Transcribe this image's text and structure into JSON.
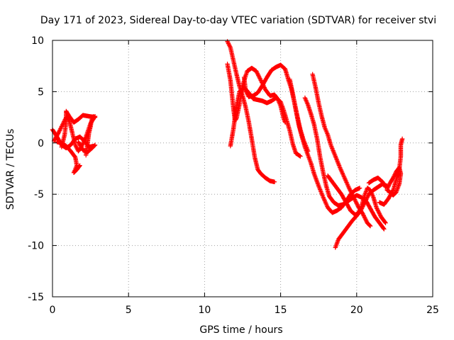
{
  "chart_data": {
    "type": "scatter",
    "title": "Day 171 of 2023, Sidereal Day-to-day VTEC variation (SDTVAR) for receiver stvi",
    "xlabel": "GPS time / hours",
    "ylabel": "SDTVAR / TECUs",
    "xlim": [
      0,
      25
    ],
    "ylim": [
      -15,
      10
    ],
    "xticks": [
      0,
      5,
      10,
      15,
      20,
      25
    ],
    "yticks": [
      -15,
      -10,
      -5,
      0,
      5,
      10
    ],
    "xtick_labels": [
      "0",
      "5",
      "10",
      "15",
      "20",
      "25"
    ],
    "ytick_labels": [
      "-15",
      "-10",
      "-5",
      "0",
      "5",
      "10"
    ],
    "grid": true,
    "marker": "plus",
    "series_color": "#ff0000",
    "tracks": [
      [
        [
          0.0,
          1.3
        ],
        [
          0.3,
          0.6
        ],
        [
          0.6,
          -0.2
        ],
        [
          0.9,
          -0.5
        ],
        [
          1.2,
          -0.2
        ],
        [
          1.5,
          0.4
        ],
        [
          1.8,
          0.6
        ],
        [
          2.1,
          0.2
        ],
        [
          2.4,
          -0.4
        ],
        [
          2.7,
          -0.3
        ]
      ],
      [
        [
          0.1,
          0.2
        ],
        [
          0.4,
          1.0
        ],
        [
          0.7,
          1.9
        ],
        [
          0.9,
          2.5
        ],
        [
          1.1,
          2.2
        ],
        [
          1.3,
          1.0
        ],
        [
          1.5,
          -0.2
        ],
        [
          1.7,
          -0.8
        ],
        [
          1.9,
          -0.4
        ],
        [
          2.2,
          0.6
        ],
        [
          2.5,
          1.9
        ],
        [
          2.8,
          2.6
        ]
      ],
      [
        [
          0.6,
          -0.4
        ],
        [
          0.8,
          0.8
        ],
        [
          0.9,
          2.1
        ],
        [
          0.9,
          3.1
        ],
        [
          1.1,
          2.6
        ],
        [
          1.4,
          2.0
        ],
        [
          1.7,
          2.3
        ],
        [
          2.0,
          2.7
        ],
        [
          2.4,
          2.6
        ],
        [
          2.8,
          2.5
        ]
      ],
      [
        [
          0.3,
          0.1
        ],
        [
          0.6,
          0.0
        ],
        [
          0.9,
          -0.3
        ],
        [
          1.2,
          -0.8
        ],
        [
          1.5,
          -1.4
        ],
        [
          1.6,
          -2.2
        ],
        [
          1.4,
          -2.9
        ],
        [
          1.6,
          -2.6
        ],
        [
          1.8,
          -2.2
        ]
      ],
      [
        [
          1.7,
          0.1
        ],
        [
          2.0,
          -0.7
        ],
        [
          2.3,
          -0.9
        ],
        [
          2.6,
          -0.5
        ],
        [
          2.8,
          -0.2
        ]
      ],
      [
        [
          2.2,
          -1.2
        ],
        [
          2.3,
          -0.1
        ],
        [
          2.4,
          1.0
        ],
        [
          2.5,
          1.6
        ],
        [
          2.6,
          2.4
        ],
        [
          2.7,
          2.6
        ]
      ],
      [
        [
          11.5,
          9.9
        ],
        [
          11.7,
          9.3
        ],
        [
          11.9,
          8.0
        ],
        [
          12.1,
          6.7
        ],
        [
          12.3,
          5.5
        ],
        [
          12.5,
          4.6
        ],
        [
          12.7,
          3.5
        ],
        [
          12.9,
          2.1
        ],
        [
          13.1,
          0.4
        ],
        [
          13.3,
          -1.4
        ],
        [
          13.5,
          -2.6
        ],
        [
          13.7,
          -3.0
        ],
        [
          14.0,
          -3.4
        ],
        [
          14.3,
          -3.7
        ],
        [
          14.6,
          -3.8
        ]
      ],
      [
        [
          11.5,
          7.7
        ],
        [
          11.7,
          6.1
        ],
        [
          11.8,
          4.7
        ],
        [
          11.9,
          3.3
        ],
        [
          12.0,
          2.2
        ],
        [
          12.1,
          2.4
        ],
        [
          12.3,
          3.8
        ],
        [
          12.5,
          5.6
        ],
        [
          12.8,
          7.0
        ],
        [
          13.1,
          7.3
        ],
        [
          13.4,
          7.0
        ],
        [
          13.7,
          6.1
        ],
        [
          14.0,
          5.2
        ],
        [
          14.3,
          4.6
        ],
        [
          14.6,
          4.7
        ],
        [
          14.8,
          4.3
        ],
        [
          15.0,
          3.6
        ],
        [
          15.2,
          2.4
        ],
        [
          15.3,
          2.0
        ]
      ],
      [
        [
          12.6,
          6.4
        ],
        [
          12.7,
          5.1
        ],
        [
          12.9,
          4.5
        ],
        [
          13.2,
          4.6
        ],
        [
          13.5,
          4.9
        ],
        [
          13.8,
          5.6
        ],
        [
          14.1,
          6.4
        ],
        [
          14.4,
          7.1
        ],
        [
          14.7,
          7.4
        ],
        [
          15.0,
          7.6
        ],
        [
          15.3,
          7.2
        ],
        [
          15.5,
          6.2
        ],
        [
          15.7,
          5.3
        ],
        [
          15.9,
          4.0
        ],
        [
          16.1,
          2.6
        ],
        [
          16.3,
          1.3
        ],
        [
          16.5,
          0.3
        ],
        [
          16.8,
          -0.8
        ]
      ],
      [
        [
          11.7,
          -0.3
        ],
        [
          11.9,
          1.4
        ],
        [
          12.1,
          3.6
        ],
        [
          12.3,
          5.0
        ],
        [
          12.6,
          5.4
        ],
        [
          12.9,
          4.9
        ],
        [
          13.2,
          4.3
        ],
        [
          13.5,
          4.2
        ],
        [
          13.8,
          4.1
        ],
        [
          14.1,
          3.9
        ],
        [
          14.4,
          4.1
        ],
        [
          14.7,
          4.4
        ],
        [
          15.0,
          4.0
        ],
        [
          15.2,
          3.2
        ],
        [
          15.4,
          2.2
        ],
        [
          15.6,
          1.2
        ],
        [
          15.8,
          -0.1
        ],
        [
          16.0,
          -1.0
        ],
        [
          16.3,
          -1.3
        ]
      ],
      [
        [
          15.6,
          6.2
        ],
        [
          15.8,
          4.8
        ],
        [
          16.0,
          3.2
        ],
        [
          16.2,
          1.7
        ],
        [
          16.4,
          0.6
        ],
        [
          16.6,
          -0.4
        ],
        [
          16.8,
          -1.2
        ],
        [
          17.0,
          -2.0
        ],
        [
          17.2,
          -3.0
        ],
        [
          17.5,
          -4.2
        ],
        [
          17.8,
          -5.3
        ],
        [
          18.1,
          -6.3
        ],
        [
          18.4,
          -6.8
        ],
        [
          18.7,
          -6.6
        ],
        [
          19.0,
          -6.3
        ],
        [
          19.3,
          -5.7
        ],
        [
          19.6,
          -5.0
        ],
        [
          19.9,
          -4.6
        ],
        [
          20.2,
          -4.4
        ]
      ],
      [
        [
          16.6,
          4.4
        ],
        [
          16.8,
          3.7
        ],
        [
          17.0,
          2.8
        ],
        [
          17.2,
          1.8
        ],
        [
          17.4,
          0.4
        ],
        [
          17.6,
          -1.4
        ],
        [
          17.8,
          -2.9
        ],
        [
          18.0,
          -4.2
        ],
        [
          18.2,
          -5.2
        ],
        [
          18.5,
          -5.8
        ],
        [
          18.8,
          -6.1
        ],
        [
          19.1,
          -6.0
        ],
        [
          19.4,
          -5.7
        ],
        [
          19.7,
          -5.4
        ],
        [
          20.0,
          -5.1
        ],
        [
          20.3,
          -5.3
        ],
        [
          20.6,
          -5.6
        ],
        [
          20.9,
          -6.4
        ],
        [
          21.2,
          -7.2
        ],
        [
          21.5,
          -7.8
        ],
        [
          21.8,
          -8.4
        ]
      ],
      [
        [
          17.1,
          6.7
        ],
        [
          17.3,
          5.4
        ],
        [
          17.5,
          3.9
        ],
        [
          17.7,
          2.6
        ],
        [
          17.9,
          1.5
        ],
        [
          18.1,
          0.8
        ],
        [
          18.3,
          -0.2
        ],
        [
          18.6,
          -1.3
        ],
        [
          18.9,
          -2.4
        ],
        [
          19.2,
          -3.4
        ],
        [
          19.5,
          -4.4
        ],
        [
          19.8,
          -5.3
        ],
        [
          20.1,
          -6.2
        ],
        [
          20.4,
          -6.9
        ],
        [
          20.7,
          -7.8
        ],
        [
          20.9,
          -8.1
        ]
      ],
      [
        [
          18.6,
          -10.2
        ],
        [
          18.8,
          -9.4
        ],
        [
          19.1,
          -8.8
        ],
        [
          19.4,
          -8.2
        ],
        [
          19.7,
          -7.6
        ],
        [
          20.0,
          -7.1
        ],
        [
          20.3,
          -6.3
        ],
        [
          20.5,
          -5.2
        ],
        [
          20.7,
          -4.4
        ],
        [
          20.9,
          -4.6
        ],
        [
          21.1,
          -5.3
        ],
        [
          21.3,
          -6.3
        ],
        [
          21.6,
          -7.2
        ],
        [
          21.9,
          -7.8
        ]
      ],
      [
        [
          18.1,
          -3.2
        ],
        [
          18.4,
          -3.8
        ],
        [
          18.7,
          -4.4
        ],
        [
          19.0,
          -5.0
        ],
        [
          19.3,
          -5.8
        ],
        [
          19.6,
          -6.6
        ],
        [
          19.9,
          -7.0
        ],
        [
          20.2,
          -6.8
        ],
        [
          20.5,
          -5.9
        ],
        [
          20.8,
          -5.0
        ],
        [
          21.1,
          -4.6
        ],
        [
          21.4,
          -4.3
        ],
        [
          21.7,
          -4.0
        ],
        [
          22.0,
          -4.2
        ]
      ],
      [
        [
          20.8,
          -3.9
        ],
        [
          21.1,
          -3.6
        ],
        [
          21.4,
          -3.4
        ],
        [
          21.7,
          -3.8
        ],
        [
          21.9,
          -4.3
        ]
      ],
      [
        [
          22.0,
          -4.5
        ],
        [
          22.2,
          -3.9
        ],
        [
          22.4,
          -3.4
        ],
        [
          22.6,
          -2.8
        ],
        [
          22.8,
          -2.4
        ],
        [
          22.9,
          -3.0
        ],
        [
          22.8,
          -4.0
        ],
        [
          22.6,
          -4.8
        ],
        [
          22.4,
          -5.1
        ],
        [
          22.2,
          -4.8
        ],
        [
          22.0,
          -4.6
        ]
      ],
      [
        [
          21.5,
          -5.8
        ],
        [
          21.8,
          -6.0
        ],
        [
          22.1,
          -5.4
        ],
        [
          22.4,
          -4.6
        ],
        [
          22.6,
          -3.6
        ],
        [
          22.8,
          -2.6
        ],
        [
          22.9,
          -1.3
        ],
        [
          22.9,
          -0.2
        ],
        [
          23.0,
          0.4
        ]
      ]
    ]
  }
}
